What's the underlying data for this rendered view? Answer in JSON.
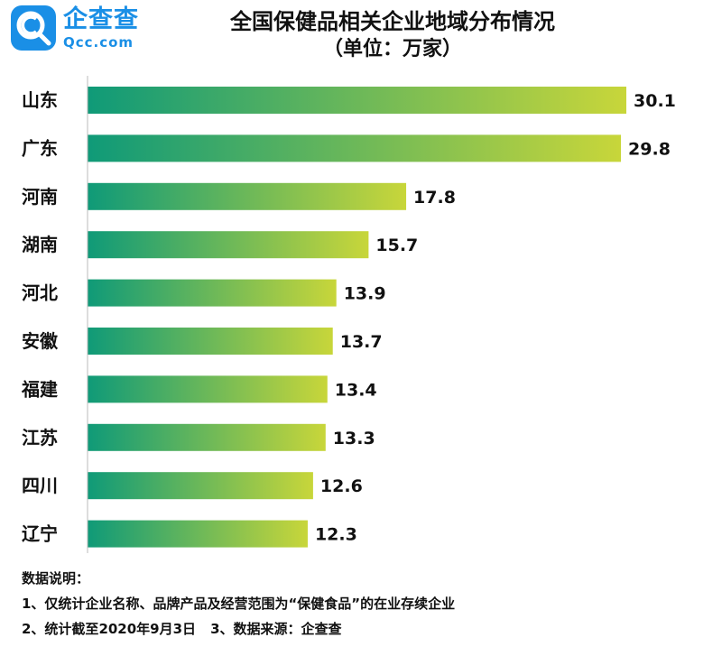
{
  "logo": {
    "name_cn": "企查查",
    "name_en": "Qcc.com"
  },
  "chart_data": {
    "type": "bar",
    "orientation": "horizontal",
    "title": "全国保健品相关企业地域分布情况",
    "subtitle": "（单位：万家）",
    "categories": [
      "山东",
      "广东",
      "河南",
      "湖南",
      "河北",
      "安徽",
      "福建",
      "江苏",
      "四川",
      "辽宁"
    ],
    "values": [
      30.1,
      29.8,
      17.8,
      15.7,
      13.9,
      13.7,
      13.4,
      13.3,
      12.6,
      12.3
    ],
    "value_labels": [
      "30.1",
      "29.8",
      "17.8",
      "15.7",
      "13.9",
      "13.7",
      "13.4",
      "13.3",
      "12.6",
      "12.3"
    ],
    "xlim": [
      0,
      30.1
    ],
    "grid": false,
    "legend": "none",
    "colors": {
      "gradient_start": "#0f9a78",
      "gradient_end": "#c8d63a",
      "axis": "#bbbbbb"
    }
  },
  "notes": {
    "heading": "数据说明：",
    "line1": "1、仅统计企业名称、品牌产品及经营范围为“保健食品”的在业存续企业",
    "line2a": "2、统计截至2020年9月3日",
    "line2b": "3、数据来源：企查查"
  }
}
